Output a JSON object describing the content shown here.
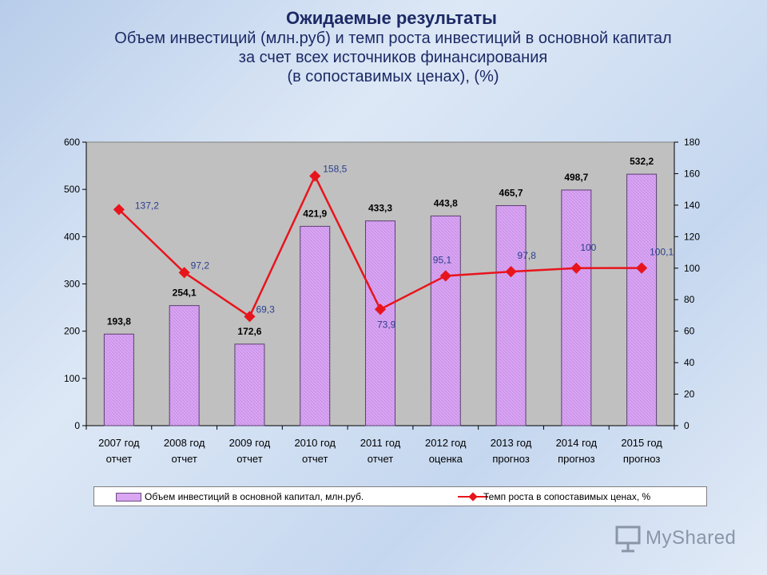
{
  "slide": {
    "title": "Ожидаемые результаты",
    "subtitle_lines": [
      "Объем инвестиций (млн.руб) и темп роста инвестиций в основной капитал",
      "за счет всех источников финансирования",
      "(в сопоставимых ценах), (%)"
    ]
  },
  "chart_data": {
    "type": "bar",
    "title": "Объем инвестиций (млн.руб) и темп роста инвестиций в основной капитал за счет всех источников финансирования (в сопоставимых ценах), (%)",
    "categories": [
      [
        "2007 год",
        "отчет"
      ],
      [
        "2008 год",
        "отчет"
      ],
      [
        "2009 год",
        "отчет"
      ],
      [
        "2010 год",
        "отчет"
      ],
      [
        "2011 год",
        "отчет"
      ],
      [
        "2012 год",
        "оценка"
      ],
      [
        "2013 год",
        "прогноз"
      ],
      [
        "2014 год",
        "прогноз"
      ],
      [
        "2015 год",
        "прогноз"
      ]
    ],
    "series": [
      {
        "name": "Объем инвестиций в основной капитал, млн.руб.",
        "type": "bar",
        "axis": "left",
        "color": "#d9a6f2",
        "values": [
          193.8,
          254.1,
          172.6,
          421.9,
          433.3,
          443.8,
          465.7,
          498.7,
          532.2
        ],
        "labels": [
          "193,8",
          "254,1",
          "172,6",
          "421,9",
          "433,3",
          "443,8",
          "465,7",
          "498,7",
          "532,2"
        ]
      },
      {
        "name": "Темп роста в сопоставимых ценах, %",
        "type": "line",
        "axis": "right",
        "color": "#e8141c",
        "values": [
          137.2,
          97.2,
          69.3,
          158.5,
          73.9,
          95.1,
          97.8,
          100,
          100.1
        ],
        "labels": [
          "137,2",
          "97,2",
          "69,3",
          "158,5",
          "73,9",
          "95,1",
          "97,8",
          "100",
          "100,1"
        ]
      }
    ],
    "ylim_left": [
      0,
      600
    ],
    "yticks_left": [
      0,
      100,
      200,
      300,
      400,
      500,
      600
    ],
    "ylim_right": [
      0,
      180
    ],
    "yticks_right": [
      0,
      20,
      40,
      60,
      80,
      100,
      120,
      140,
      160,
      180
    ],
    "legend_position": "bottom"
  },
  "watermark": {
    "text": "MyShared"
  }
}
